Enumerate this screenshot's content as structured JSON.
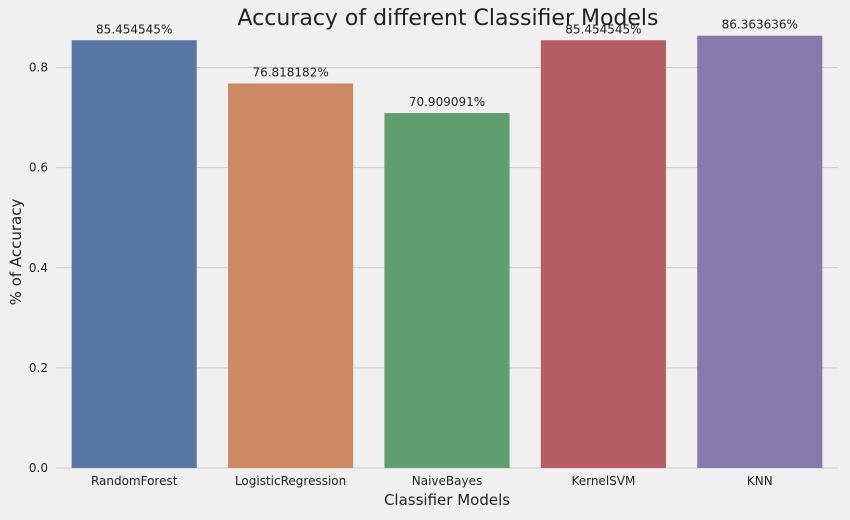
{
  "chart_data": {
    "type": "bar",
    "title": "Accuracy of different Classifier Models",
    "xlabel": "Classifier Models",
    "ylabel": "% of Accuracy",
    "categories": [
      "RandomForest",
      "LogisticRegression",
      "NaiveBayes",
      "KernelSVM",
      "KNN"
    ],
    "values": [
      0.85454545,
      0.76818182,
      0.70909091,
      0.85454545,
      0.86363636
    ],
    "data_labels": [
      "85.454545%",
      "76.818182%",
      "70.909091%",
      "85.454545%",
      "86.363636%"
    ],
    "y_ticks": [
      0.0,
      0.2,
      0.4,
      0.6,
      0.8
    ],
    "y_tick_labels": [
      "0.0",
      "0.2",
      "0.4",
      "0.6",
      "0.8"
    ],
    "ylim": [
      0,
      0.907
    ],
    "grid": true,
    "colors": [
      "#5975a4",
      "#cc8963",
      "#5f9e6e",
      "#b55d60",
      "#857aab"
    ],
    "background": "#f0f0f0",
    "grid_color": "#cbcbcb"
  }
}
